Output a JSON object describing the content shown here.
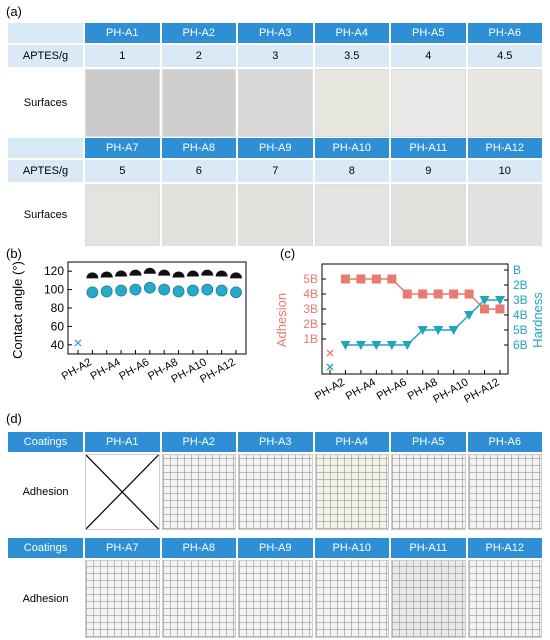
{
  "panel_labels": {
    "a": "(a)",
    "b": "(b)",
    "c": "(c)",
    "d": "(d)"
  },
  "panel_a": {
    "row1_headers": [
      "PH-A1",
      "PH-A2",
      "PH-A3",
      "PH-A4",
      "PH-A5",
      "PH-A6"
    ],
    "row1_aptes": [
      "1",
      "2",
      "3",
      "3.5",
      "4",
      "4.5"
    ],
    "row2_headers": [
      "PH-A7",
      "PH-A8",
      "PH-A9",
      "PH-A10",
      "PH-A11",
      "PH-A12"
    ],
    "row2_aptes": [
      "5",
      "6",
      "7",
      "8",
      "9",
      "10"
    ],
    "aptes_label": "APTES/g",
    "surfaces_label": "Surfaces",
    "surface_colors_1": [
      "#c9c9c9",
      "#cfcfcf",
      "#d8d8d8",
      "#e6e5de",
      "#e8e9e6",
      "#e7e6e1"
    ],
    "surface_colors_2": [
      "#e3e3df",
      "#e1e1de",
      "#e2e2df",
      "#e4e5e2",
      "#e0e0dd",
      "#e2e2e0"
    ]
  },
  "chart_data": [
    {
      "type": "scatter",
      "panel": "b",
      "ylabel": "Contact angle (°)",
      "ylim": [
        30,
        130
      ],
      "yticks": [
        40,
        60,
        80,
        100,
        120
      ],
      "categories": [
        "PH-A1",
        "PH-A2",
        "PH-A3",
        "PH-A4",
        "PH-A5",
        "PH-A6",
        "PH-A7",
        "PH-A8",
        "PH-A9",
        "PH-A10",
        "PH-A11",
        "PH-A12"
      ],
      "tick_labels": [
        "PH-A2",
        "PH-A4",
        "PH-A6",
        "PH-A8",
        "PH-A10",
        "PH-A12"
      ],
      "series": [
        {
          "values": [
            42,
            97,
            98,
            99,
            100,
            102,
            100,
            98,
            99,
            100,
            99,
            97
          ],
          "color": "#27a9c9"
        }
      ]
    },
    {
      "type": "scatter",
      "panel": "c",
      "ylabel_left": "Adhesion",
      "ylabel_right": "Hardness",
      "left_ticks": [
        "1B",
        "2B",
        "3B",
        "4B",
        "5B"
      ],
      "right_ticks": [
        "6B",
        "5B",
        "4B",
        "3B",
        "2B",
        "B"
      ],
      "categories": [
        "PH-A1",
        "PH-A2",
        "PH-A3",
        "PH-A4",
        "PH-A5",
        "PH-A6",
        "PH-A7",
        "PH-A8",
        "PH-A9",
        "PH-A10",
        "PH-A11",
        "PH-A12"
      ],
      "tick_labels": [
        "PH-A2",
        "PH-A4",
        "PH-A6",
        "PH-A8",
        "PH-A10",
        "PH-A12"
      ],
      "series": [
        {
          "axis": "left",
          "values": [
            "0B",
            "5B",
            "5B",
            "5B",
            "5B",
            "4B",
            "4B",
            "4B",
            "4B",
            "4B",
            "3B",
            "3B"
          ],
          "color": "#e87a6e"
        },
        {
          "axis": "right",
          "values": [
            "7B",
            "6B",
            "6B",
            "6B",
            "6B",
            "6B",
            "5B",
            "5B",
            "5B",
            "4B",
            "3B",
            "3B"
          ],
          "color": "#1fa6b9"
        }
      ]
    }
  ],
  "panel_d": {
    "row1_headers": [
      "PH-A1",
      "PH-A2",
      "PH-A3",
      "PH-A4",
      "PH-A5",
      "PH-A6"
    ],
    "row2_headers": [
      "PH-A7",
      "PH-A8",
      "PH-A9",
      "PH-A10",
      "PH-A11",
      "PH-A12"
    ],
    "coatings_label": "Coatings",
    "adhesion_label": "Adhesion"
  }
}
